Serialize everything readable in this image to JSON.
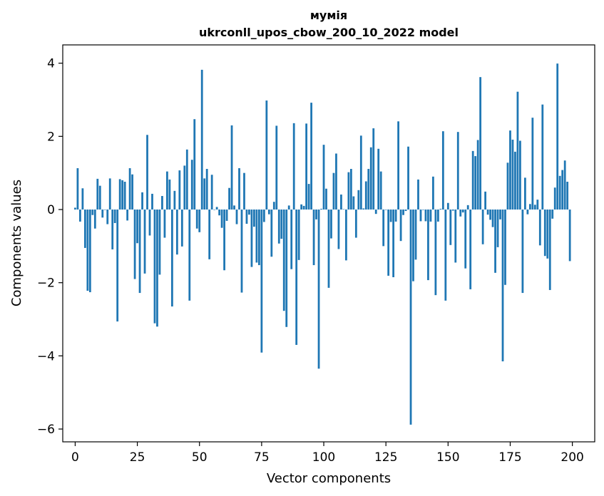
{
  "chart_data": {
    "type": "bar",
    "title": "мумія",
    "subtitle": "ukrconll_upos_cbow_200_10_2022 model",
    "xlabel": "Vector components",
    "ylabel": "Components values",
    "xlim": [
      -5,
      209
    ],
    "ylim": [
      -6.35,
      4.5
    ],
    "xticks": [
      0,
      25,
      50,
      75,
      100,
      125,
      150,
      175,
      200
    ],
    "xtick_labels": [
      "0",
      "25",
      "50",
      "75",
      "100",
      "125",
      "150",
      "175",
      "200"
    ],
    "yticks": [
      4,
      2,
      0,
      -2,
      -4,
      -6
    ],
    "ytick_labels": [
      "4",
      "2",
      "0",
      "−2",
      "−4",
      "−6"
    ],
    "grid": false,
    "bar_color": "#1f77b4",
    "values": [
      0.05,
      1.13,
      -0.33,
      0.58,
      -1.05,
      -2.22,
      -2.26,
      -0.15,
      -0.52,
      0.84,
      0.65,
      -0.22,
      0.0,
      -0.4,
      0.85,
      -1.09,
      -0.37,
      -3.06,
      0.83,
      0.8,
      0.76,
      -0.3,
      1.13,
      0.96,
      -1.9,
      -0.92,
      -2.28,
      0.47,
      -1.75,
      2.04,
      -0.71,
      0.43,
      -3.11,
      -3.2,
      -1.78,
      0.37,
      -0.77,
      1.04,
      0.82,
      -2.65,
      0.51,
      -1.23,
      1.07,
      -1.01,
      1.2,
      1.64,
      -2.49,
      1.36,
      2.47,
      -0.52,
      -0.62,
      3.82,
      0.85,
      1.11,
      -1.36,
      0.95,
      0.0,
      0.07,
      -0.16,
      -0.5,
      -1.66,
      -0.31,
      0.59,
      2.3,
      0.11,
      -0.4,
      1.13,
      -2.27,
      1.0,
      -0.39,
      -0.14,
      -1.57,
      -0.47,
      -1.45,
      -1.52,
      -3.91,
      -0.34,
      2.98,
      -0.13,
      -1.29,
      0.21,
      2.29,
      -0.93,
      -0.8,
      -2.77,
      -3.21,
      0.11,
      -1.63,
      2.36,
      -3.7,
      -1.38,
      0.14,
      0.1,
      2.35,
      0.7,
      2.92,
      -1.52,
      -0.27,
      -4.35,
      0.02,
      1.77,
      0.57,
      -2.14,
      -0.79,
      1.0,
      1.53,
      -1.08,
      0.41,
      0.01,
      -1.39,
      1.02,
      1.11,
      0.36,
      -0.77,
      0.53,
      2.02,
      0.03,
      0.77,
      1.11,
      1.7,
      2.22,
      -0.12,
      1.66,
      1.04,
      -1.0,
      -0.01,
      -1.81,
      -0.34,
      -1.85,
      -0.33,
      2.41,
      -0.86,
      -0.15,
      -0.04,
      1.72,
      -5.88,
      -1.96,
      -1.37,
      0.82,
      -0.32,
      0.0,
      -0.32,
      -1.93,
      -0.33,
      0.9,
      -2.34,
      -0.33,
      0.02,
      2.14,
      -2.49,
      0.18,
      -0.97,
      -0.03,
      -1.45,
      2.12,
      -0.19,
      -0.08,
      -1.61,
      0.12,
      -2.18,
      1.6,
      1.46,
      1.9,
      3.62,
      -0.95,
      0.49,
      -0.14,
      -0.28,
      -0.48,
      -1.73,
      -1.03,
      -0.27,
      -4.15,
      -2.06,
      1.28,
      2.16,
      1.91,
      1.58,
      3.22,
      1.88,
      -2.28,
      0.87,
      -0.13,
      0.15,
      2.51,
      0.13,
      0.27,
      -0.98,
      2.87,
      -1.27,
      -1.34,
      -2.2,
      -0.25,
      0.6,
      3.99,
      0.92,
      1.08,
      1.34,
      0.76,
      -1.41
    ]
  }
}
